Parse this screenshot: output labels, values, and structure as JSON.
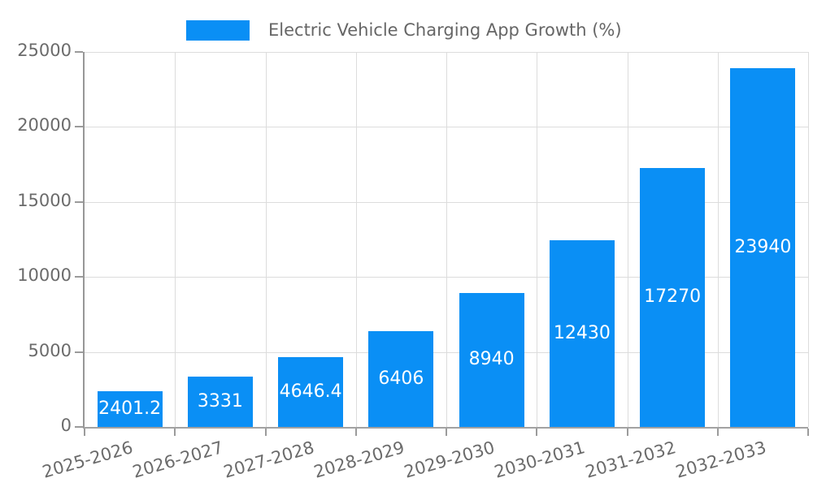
{
  "legend": {
    "label": "Electric Vehicle Charging App Growth (%)"
  },
  "chart_data": {
    "type": "bar",
    "title": "Electric Vehicle Charging App Growth (%)",
    "categories": [
      "2025-2026",
      "2026-2027",
      "2027-2028",
      "2028-2029",
      "2029-2030",
      "2030-2031",
      "2031-2032",
      "2032-2033"
    ],
    "values": [
      2401.2,
      3331,
      4646.4,
      6406,
      8940,
      12430,
      17270,
      23940
    ],
    "value_labels": [
      "2401.2",
      "3331",
      "4646.4",
      "6406",
      "8940",
      "12430",
      "17270",
      "23940"
    ],
    "xlabel": "",
    "ylabel": "",
    "ylim": [
      0,
      25000
    ],
    "yticks": [
      0,
      5000,
      10000,
      15000,
      20000,
      25000
    ],
    "grid": true,
    "legend_position": "top-center",
    "colors": {
      "bar": "#0a8ff5",
      "bar_label_text": "#ffffff",
      "axis_text": "#6b6b6b",
      "gridline": "#dcdcdc",
      "axis_line": "#9b9b9b",
      "background": "#ffffff"
    }
  }
}
